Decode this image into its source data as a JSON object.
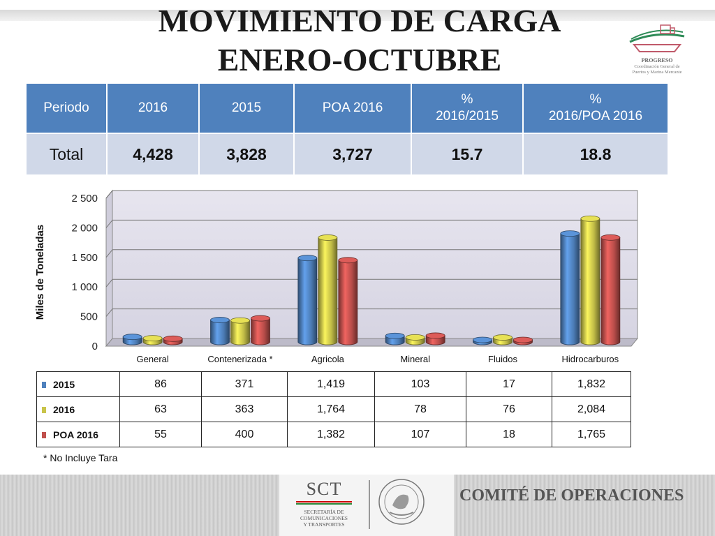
{
  "title": {
    "line1": "MOVIMIENTO DE CARGA",
    "line2": "ENERO-OCTUBRE"
  },
  "logo": {
    "name": "PROGRESO",
    "subtitle_line1": "Coordinación General de",
    "subtitle_line2": "Puertos y Marina Mercante"
  },
  "summary": {
    "headers": [
      "Periodo",
      "2016",
      "2015",
      "POA 2016",
      "%\n2016/2015",
      "%\n2016/POA 2016"
    ],
    "row": [
      "Total",
      "4,428",
      "3,828",
      "3,727",
      "15.7",
      "18.8"
    ]
  },
  "chart_data": {
    "type": "bar",
    "ylabel": "Miles de Toneladas",
    "ylim": [
      0,
      2500
    ],
    "yticks": [
      "0",
      "500",
      "1 000",
      "1 500",
      "2 000",
      "2 500"
    ],
    "categories": [
      "General",
      "Contenerizada *",
      "Agricola",
      "Mineral",
      "Fluidos",
      "Hidrocarburos"
    ],
    "series": [
      {
        "name": "2015",
        "values": [
          86,
          371,
          1419,
          103,
          17,
          1832
        ],
        "display": [
          "86",
          "371",
          "1,419",
          "103",
          "17",
          "1,832"
        ],
        "color": "#4f81bd"
      },
      {
        "name": "2016",
        "values": [
          63,
          363,
          1764,
          78,
          76,
          2084
        ],
        "display": [
          "63",
          "363",
          "1,764",
          "78",
          "76",
          "2,084"
        ],
        "color": "#c9c44a"
      },
      {
        "name": "POA 2016",
        "values": [
          55,
          400,
          1382,
          107,
          18,
          1765
        ],
        "display": [
          "55",
          "400",
          "1,382",
          "107",
          "18",
          "1,765"
        ],
        "color": "#c0504d"
      }
    ],
    "grid": true,
    "legend": "data-table"
  },
  "note": "* No Incluye Tara",
  "footer": {
    "sct_big": "SCT",
    "sct_line1": "SECRETARÍA DE",
    "sct_line2": "COMUNICACIONES",
    "sct_line3": "Y TRANSPORTES",
    "comite": "COMITÉ DE OPERACIONES"
  }
}
